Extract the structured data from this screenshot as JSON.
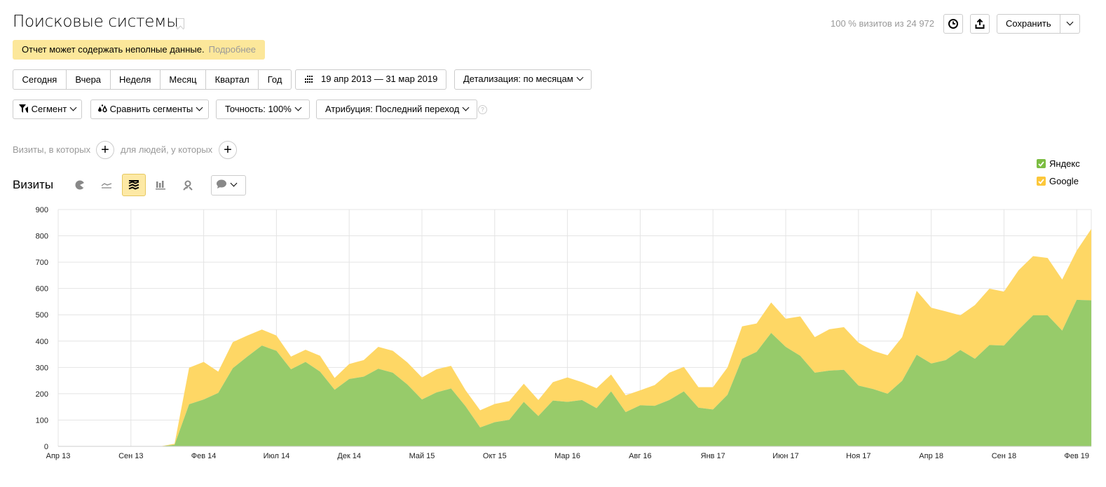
{
  "header": {
    "title": "Поисковые системы",
    "warning": "Отчет может содержать неполные данные.",
    "warning_link": "Подробнее",
    "stats": "100 % визитов из 24 972",
    "save_label": "Сохранить"
  },
  "periods": [
    "Сегодня",
    "Вчера",
    "Неделя",
    "Месяц",
    "Квартал",
    "Год"
  ],
  "date_range": "19 апр 2013 — 31 мар 2019",
  "detail": "Детализация: по месяцам",
  "filters": {
    "segment": "Сегмент",
    "compare": "Сравнить сегменты",
    "accuracy": "Точность: 100%",
    "attribution": "Атрибуция: Последний переход"
  },
  "conditions": {
    "visits_label": "Визиты, в которых",
    "people_label": "для людей, у которых"
  },
  "metric_title": "Визиты",
  "colors": {
    "yandex": "#97cb6a",
    "google": "#fed765",
    "grid": "#e4e4e4"
  },
  "chart_data": {
    "type": "area",
    "stacked": true,
    "title": "Визиты",
    "xlabel": "",
    "ylabel": "",
    "ylim": [
      0,
      900
    ],
    "yticks": [
      0,
      100,
      200,
      300,
      400,
      500,
      600,
      700,
      800,
      900
    ],
    "x_start": "Апр 13",
    "x_count": 72,
    "xticks": [
      {
        "i": 0,
        "label": "Апр 13"
      },
      {
        "i": 5,
        "label": "Сен 13"
      },
      {
        "i": 10,
        "label": "Фев 14"
      },
      {
        "i": 15,
        "label": "Июл 14"
      },
      {
        "i": 20,
        "label": "Дек 14"
      },
      {
        "i": 25,
        "label": "Май 15"
      },
      {
        "i": 30,
        "label": "Окт 15"
      },
      {
        "i": 35,
        "label": "Мар 16"
      },
      {
        "i": 40,
        "label": "Авг 16"
      },
      {
        "i": 45,
        "label": "Янв 17"
      },
      {
        "i": 50,
        "label": "Июн 17"
      },
      {
        "i": 55,
        "label": "Ноя 17"
      },
      {
        "i": 60,
        "label": "Апр 18"
      },
      {
        "i": 65,
        "label": "Сен 18"
      },
      {
        "i": 70,
        "label": "Фев 19"
      }
    ],
    "legend_position": "top-right",
    "series": [
      {
        "name": "Яндекс",
        "values": [
          0,
          0,
          0,
          0,
          0,
          0,
          0,
          0,
          6,
          160,
          178,
          203,
          297,
          341,
          383,
          363,
          293,
          321,
          284,
          215,
          256,
          265,
          295,
          280,
          235,
          178,
          205,
          220,
          152,
          72,
          92,
          101,
          169,
          115,
          174,
          169,
          176,
          145,
          209,
          130,
          156,
          154,
          176,
          209,
          147,
          140,
          196,
          333,
          359,
          431,
          378,
          344,
          280,
          288,
          291,
          231,
          218,
          200,
          249,
          348,
          315,
          328,
          366,
          333,
          385,
          383,
          443,
          498,
          498,
          440,
          557,
          555
        ]
      },
      {
        "name": "Google",
        "values": [
          0,
          0,
          0,
          0,
          0,
          0,
          0,
          0,
          4,
          139,
          143,
          81,
          99,
          80,
          61,
          58,
          48,
          46,
          60,
          45,
          57,
          63,
          83,
          83,
          84,
          84,
          88,
          86,
          61,
          65,
          69,
          71,
          69,
          61,
          70,
          93,
          68,
          76,
          64,
          64,
          57,
          79,
          104,
          93,
          78,
          85,
          104,
          123,
          108,
          116,
          107,
          150,
          135,
          157,
          162,
          163,
          145,
          146,
          166,
          243,
          212,
          185,
          132,
          204,
          214,
          205,
          226,
          225,
          218,
          194,
          187,
          271
        ]
      }
    ]
  }
}
